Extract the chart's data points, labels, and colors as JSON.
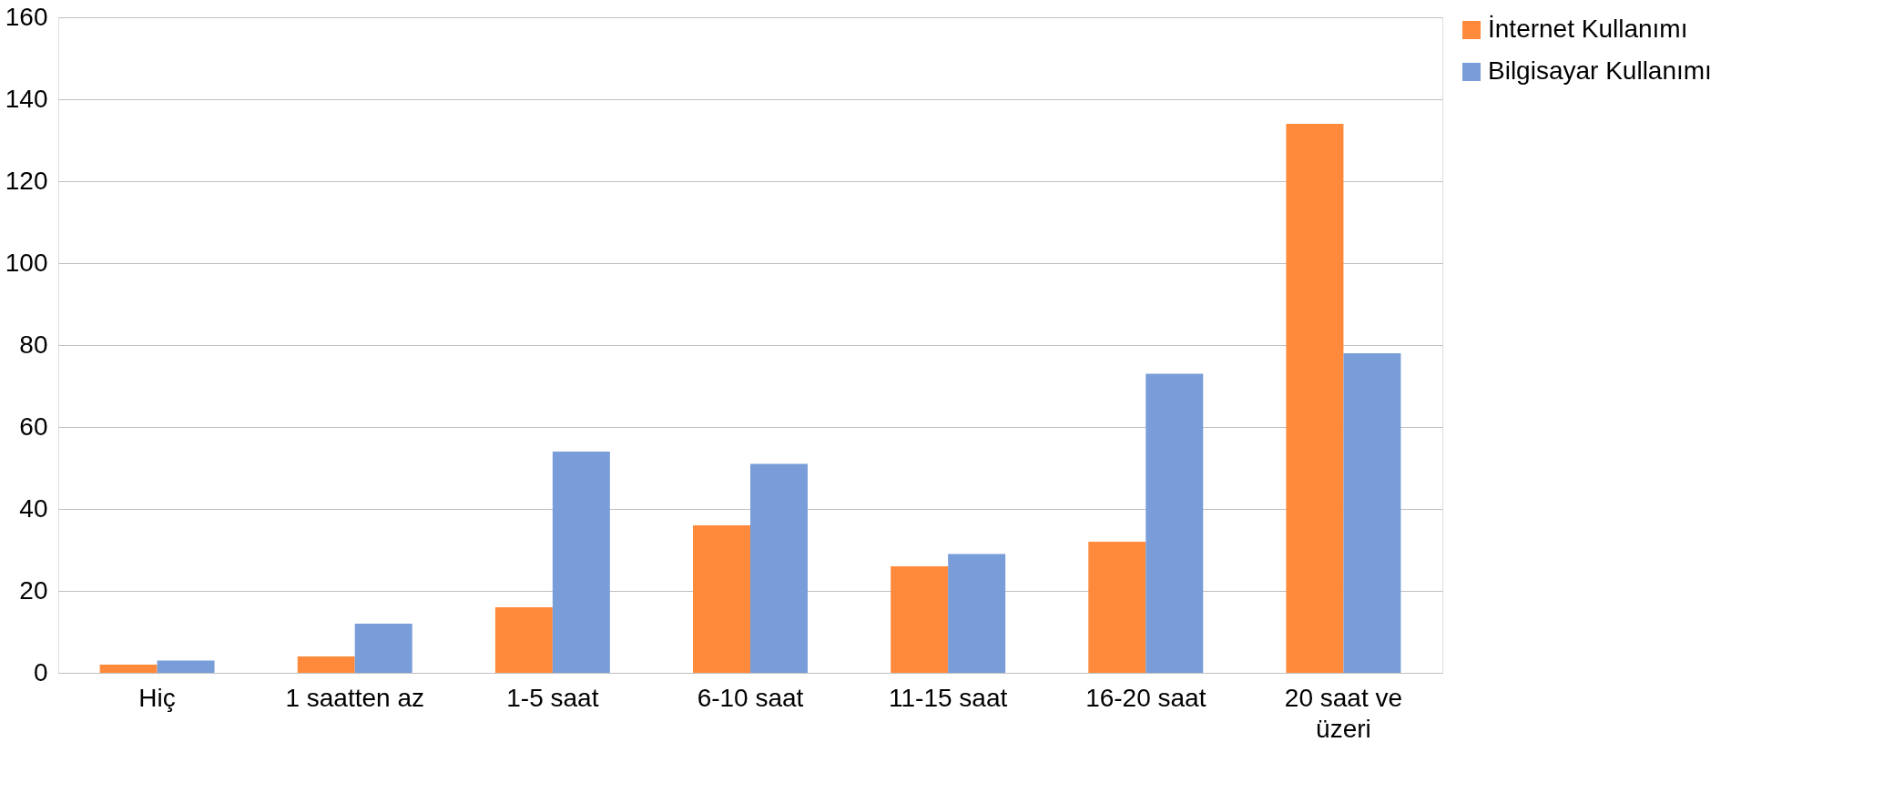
{
  "chart_data": {
    "type": "bar",
    "categories": [
      "Hiç",
      "1 saatten az",
      "1-5 saat",
      "6-10 saat",
      "11-15 saat",
      "16-20 saat",
      "20 saat ve\nüzeri"
    ],
    "series": [
      {
        "name": "İnternet Kullanımı",
        "color": "#ff8a3b",
        "values": [
          2,
          4,
          16,
          36,
          26,
          32,
          134
        ]
      },
      {
        "name": "Bilgisayar Kullanımı",
        "color": "#789dd9",
        "values": [
          3,
          12,
          54,
          51,
          29,
          73,
          78
        ]
      }
    ],
    "ylim": [
      0,
      160
    ],
    "yticks": [
      0,
      20,
      40,
      60,
      80,
      100,
      120,
      140,
      160
    ],
    "grid": "y",
    "legend": "right"
  }
}
